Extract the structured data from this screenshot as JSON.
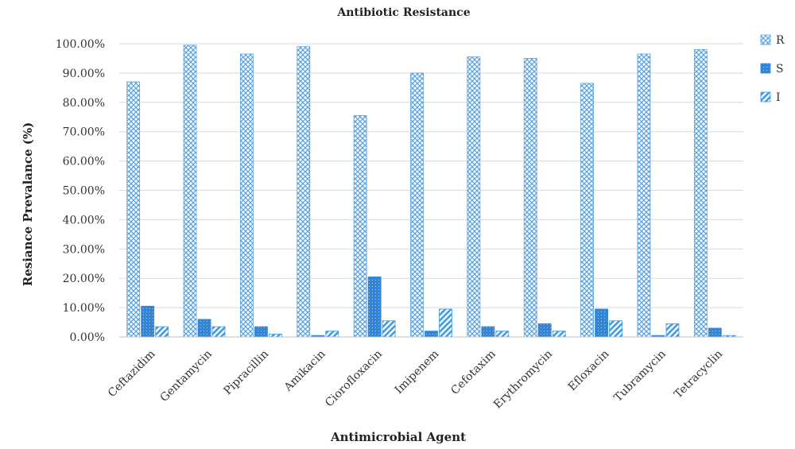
{
  "chart_data": {
    "type": "bar",
    "title": "Antibiotic Resistance",
    "xlabel": "Antimicrobial Agent",
    "ylabel": "Resiance Prevalance (%)",
    "ylim": [
      0,
      100
    ],
    "yticks": [
      "0.00%",
      "10.00%",
      "20.00%",
      "30.00%",
      "40.00%",
      "50.00%",
      "60.00%",
      "70.00%",
      "80.00%",
      "90.00%",
      "100.00%"
    ],
    "categories": [
      "Ceftazidim",
      "Gentamycin",
      "Pipracillin",
      "Amikacin",
      "Ciorofloxacin",
      "Imipenem",
      "Cefotaxim",
      "Erythromycin",
      "Efloxacin",
      "Tubramycin",
      "Tetracyclin"
    ],
    "series": [
      {
        "name": "R",
        "color": "#5BA3E0",
        "pattern": "crosshatch",
        "values": [
          87,
          99.5,
          96.5,
          99,
          75.5,
          90,
          95.5,
          95,
          86.5,
          96.5,
          98
        ]
      },
      {
        "name": "S",
        "color": "#2E86DE",
        "pattern": "solid-dotted",
        "values": [
          10.5,
          6,
          3.5,
          0.5,
          20.5,
          2,
          3.5,
          4.5,
          9.5,
          0.5,
          3
        ]
      },
      {
        "name": "I",
        "color": "#3E9BE6",
        "pattern": "diagonal",
        "values": [
          3.5,
          3.5,
          1,
          2,
          5.5,
          9.5,
          2,
          2,
          5.5,
          4.5,
          0.5
        ]
      }
    ],
    "grid": true,
    "legend_position": "right"
  }
}
